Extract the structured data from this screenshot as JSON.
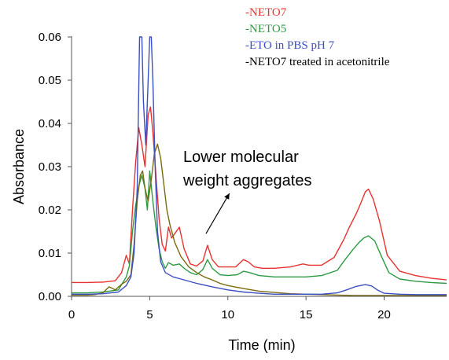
{
  "chart_data": {
    "type": "line",
    "xlabel": "Time (min)",
    "ylabel": "Absorbance",
    "xlim": [
      0,
      24
    ],
    "ylim": [
      0,
      0.06
    ],
    "xticks": [
      0,
      5,
      10,
      15,
      20
    ],
    "xtick_labels": [
      "0",
      "5",
      "10",
      "15",
      "20"
    ],
    "yticks": [
      0,
      0.01,
      0.02,
      0.03,
      0.04,
      0.05,
      0.06
    ],
    "ytick_labels": [
      "0.00",
      "0.01",
      "0.02",
      "0.03",
      "0.04",
      "0.05",
      "0.06"
    ],
    "grid": false,
    "legend": {
      "position": "top-right",
      "entries": [
        "-NETO7",
        "-NETO5",
        "-ETO in PBS pH 7",
        "-NETO7 treated in acetonitrile"
      ]
    },
    "annotation": {
      "lines": [
        "Lower molecular",
        "weight aggregates"
      ],
      "arrow_from": [
        8.6,
        0.0145
      ],
      "arrow_to": [
        10.1,
        0.0238
      ]
    },
    "series": [
      {
        "name": "-NETO7",
        "color": "#e8322f",
        "x": [
          0,
          1,
          2,
          2.8,
          3.2,
          3.5,
          3.7,
          3.9,
          4.1,
          4.3,
          4.5,
          4.7,
          4.9,
          5.05,
          5.2,
          5.4,
          5.6,
          5.8,
          6.0,
          6.2,
          6.4,
          6.6,
          6.9,
          7.2,
          7.6,
          8.0,
          8.4,
          8.7,
          9.0,
          9.4,
          10.0,
          10.5,
          11.0,
          11.3,
          11.7,
          12.2,
          13,
          14,
          14.8,
          15.2,
          16,
          16.8,
          17.4,
          17.8,
          18.2,
          18.5,
          18.8,
          19.0,
          19.3,
          19.7,
          20.2,
          21,
          22,
          23,
          24
        ],
        "y": [
          0.0032,
          0.0032,
          0.0033,
          0.0036,
          0.0055,
          0.0095,
          0.0075,
          0.02,
          0.031,
          0.039,
          0.035,
          0.03,
          0.042,
          0.0438,
          0.038,
          0.028,
          0.018,
          0.012,
          0.0105,
          0.016,
          0.0135,
          0.0145,
          0.016,
          0.011,
          0.0075,
          0.007,
          0.0082,
          0.0118,
          0.0085,
          0.0068,
          0.0068,
          0.0068,
          0.0085,
          0.008,
          0.0068,
          0.0065,
          0.0065,
          0.0068,
          0.0075,
          0.0072,
          0.0072,
          0.009,
          0.013,
          0.0162,
          0.019,
          0.0215,
          0.0242,
          0.0248,
          0.0225,
          0.0175,
          0.0095,
          0.0058,
          0.0048,
          0.0042,
          0.0038
        ]
      },
      {
        "name": "-NETO5",
        "color": "#2e9a44",
        "x": [
          0,
          1,
          2,
          3,
          3.5,
          3.7,
          3.9,
          4.1,
          4.3,
          4.5,
          4.7,
          4.85,
          5.0,
          5.2,
          5.4,
          5.6,
          5.8,
          6.0,
          6.2,
          6.5,
          6.9,
          7.2,
          7.6,
          8.0,
          8.4,
          8.7,
          9.0,
          9.5,
          10.0,
          10.6,
          11.0,
          11.4,
          12,
          13,
          14,
          15,
          16,
          17,
          17.5,
          18,
          18.4,
          18.7,
          19.0,
          19.4,
          19.8,
          20.3,
          21,
          22,
          23,
          24
        ],
        "y": [
          0.0008,
          0.0008,
          0.001,
          0.0015,
          0.0045,
          0.007,
          0.015,
          0.021,
          0.0255,
          0.028,
          0.025,
          0.02,
          0.029,
          0.022,
          0.016,
          0.011,
          0.008,
          0.0065,
          0.0078,
          0.0072,
          0.0075,
          0.0065,
          0.0055,
          0.005,
          0.0062,
          0.0085,
          0.0065,
          0.005,
          0.0048,
          0.005,
          0.0058,
          0.0055,
          0.0048,
          0.0045,
          0.0045,
          0.0045,
          0.0048,
          0.006,
          0.0085,
          0.0108,
          0.0125,
          0.0135,
          0.014,
          0.0128,
          0.0095,
          0.0055,
          0.004,
          0.0035,
          0.0032,
          0.003
        ]
      },
      {
        "name": "-ETO in PBS pH 7",
        "color": "#3c4fc2",
        "x": [
          0,
          1,
          2,
          3,
          3.5,
          3.8,
          4.0,
          4.2,
          4.35,
          4.5,
          4.6,
          4.75,
          4.9,
          5.0,
          5.1,
          5.2,
          5.35,
          5.5,
          5.7,
          6.0,
          6.5,
          7,
          8,
          9,
          10,
          11,
          12,
          13,
          14,
          15,
          16,
          17,
          17.6,
          18.2,
          18.8,
          19.2,
          19.6,
          20,
          21,
          22,
          23,
          24
        ],
        "y": [
          0.0005,
          0.0005,
          0.0006,
          0.001,
          0.0025,
          0.0045,
          0.01,
          0.025,
          0.06,
          0.06,
          0.045,
          0.035,
          0.05,
          0.06,
          0.06,
          0.05,
          0.03,
          0.015,
          0.008,
          0.0055,
          0.0045,
          0.004,
          0.003,
          0.0022,
          0.0015,
          0.001,
          0.0007,
          0.0005,
          0.0005,
          0.0005,
          0.0005,
          0.0008,
          0.0015,
          0.0023,
          0.0027,
          0.0024,
          0.0014,
          0.0007,
          0.0005,
          0.0004,
          0.0004,
          0.0004
        ]
      },
      {
        "name": "-NETO7 treated in acetonitrile",
        "color": "#7a6a10",
        "x": [
          0,
          1,
          1.5,
          2,
          2.4,
          2.8,
          3.2,
          3.5,
          3.8,
          4.0,
          4.2,
          4.4,
          4.55,
          4.7,
          4.9,
          5.1,
          5.3,
          5.5,
          5.7,
          5.9,
          6.1,
          6.3,
          6.6,
          7.0,
          7.5,
          8.0,
          8.5,
          9.0,
          9.5,
          10,
          11,
          12,
          13,
          14,
          15,
          16,
          17,
          18,
          19,
          20,
          22,
          24
        ],
        "y": [
          0.0003,
          0.0003,
          0.0004,
          0.0008,
          0.0022,
          0.0015,
          0.0028,
          0.0035,
          0.005,
          0.012,
          0.022,
          0.028,
          0.029,
          0.025,
          0.022,
          0.027,
          0.033,
          0.0352,
          0.032,
          0.026,
          0.02,
          0.0165,
          0.0125,
          0.0092,
          0.0068,
          0.0055,
          0.0045,
          0.0038,
          0.003,
          0.0025,
          0.0018,
          0.0012,
          0.0009,
          0.0006,
          0.0005,
          0.0004,
          0.0003,
          0.0002,
          0.0002,
          0.0002,
          0.0002,
          0.0002
        ]
      }
    ]
  }
}
